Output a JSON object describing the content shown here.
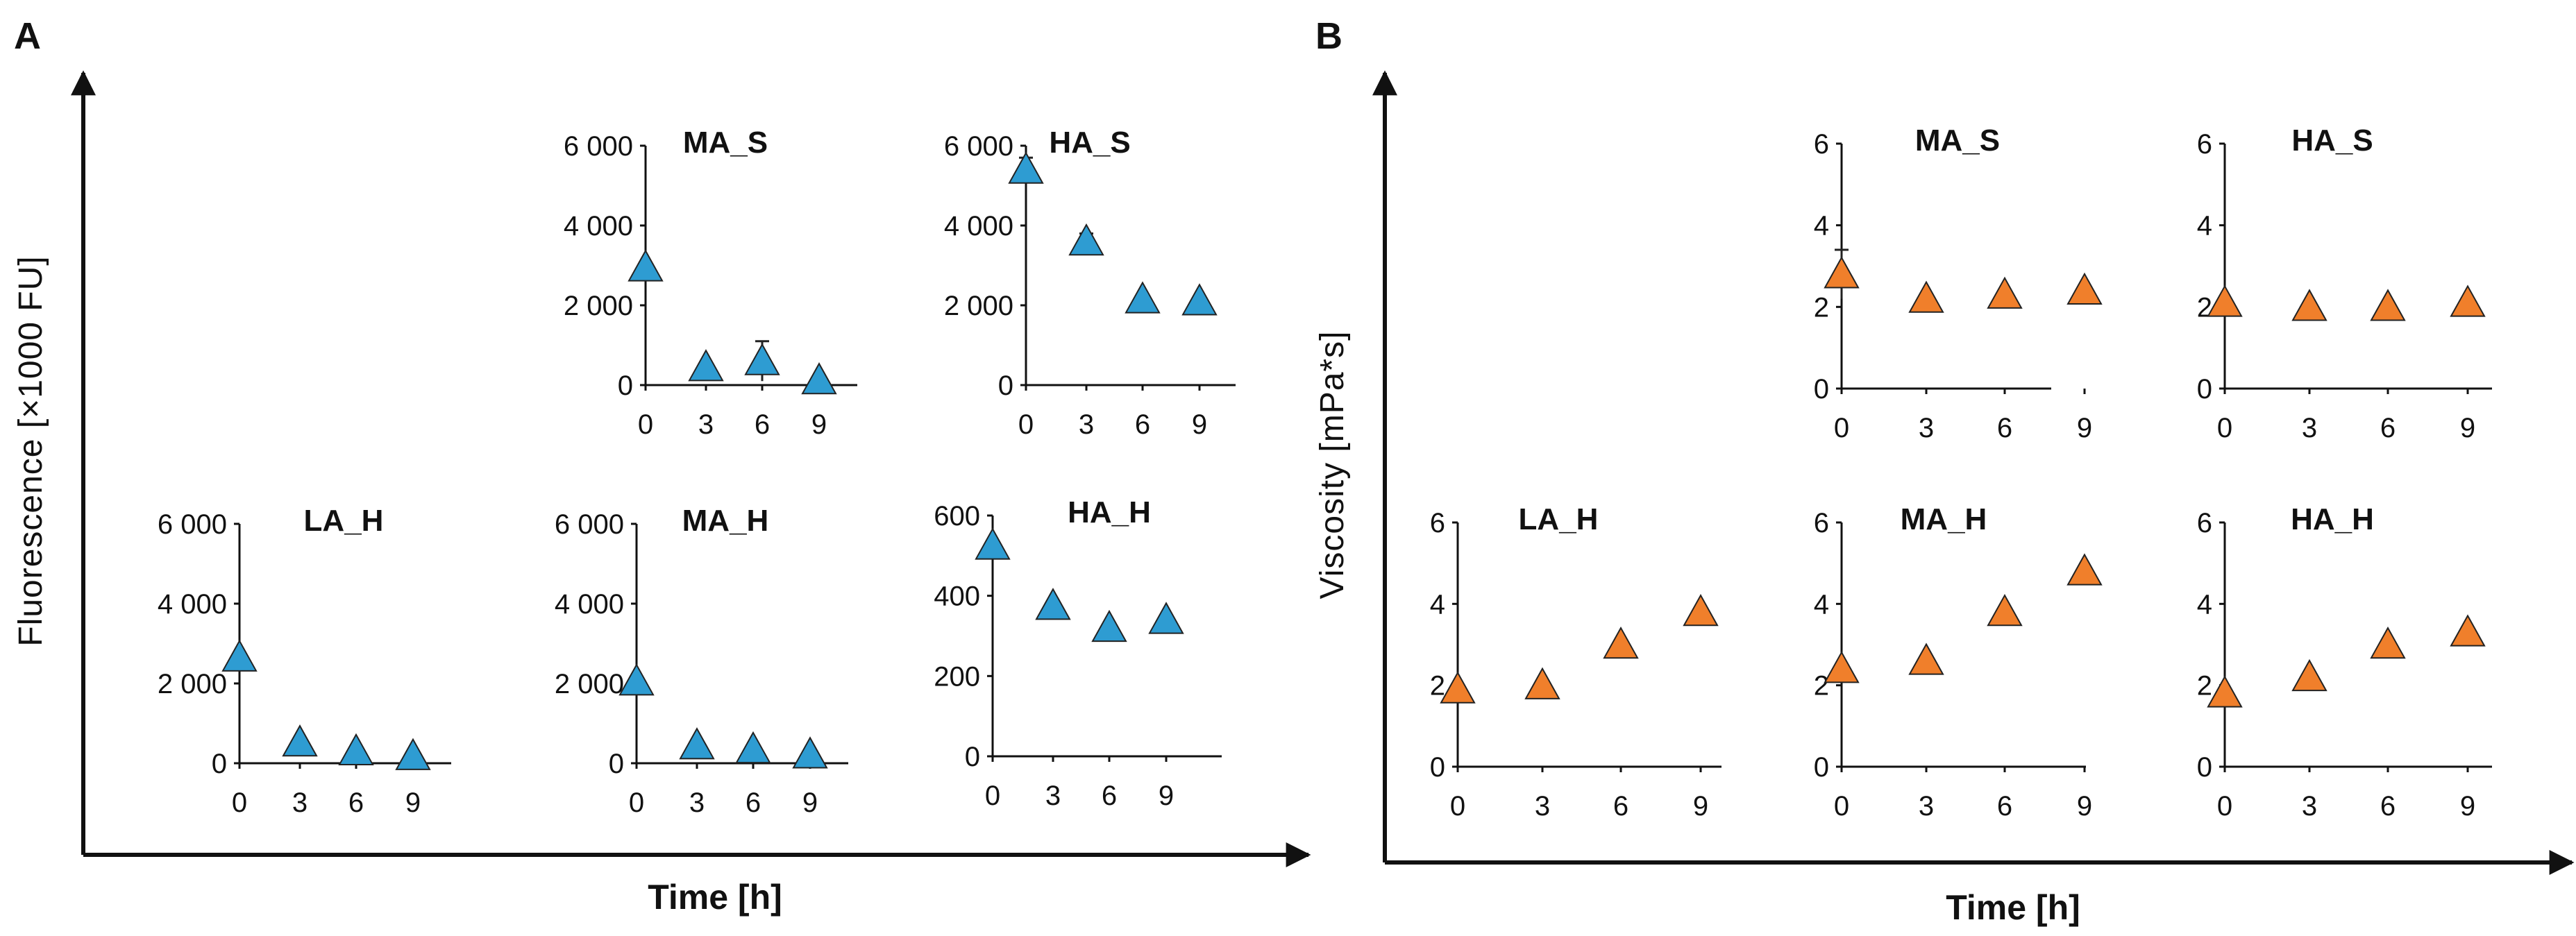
{
  "panels": [
    {
      "letter": "A",
      "ylabel": "Fluorescence [×1000 FU]",
      "xlabel": "Time [h]",
      "marker_color": "#2E9CD2"
    },
    {
      "letter": "B",
      "ylabel": "Viscosity [mPa*s]",
      "xlabel": "Time [h]",
      "marker_color": "#F07F2B"
    }
  ],
  "chart_data": [
    {
      "panel": "A",
      "type": "scatter",
      "title": "MA_S",
      "x": [
        0,
        3,
        6,
        9
      ],
      "y": [
        2950,
        450,
        600,
        120
      ],
      "ylim": [
        0,
        6000
      ],
      "yticks": [
        "6 000",
        "4 000",
        "2 000",
        "0"
      ],
      "xticks": [
        "0",
        "3",
        "6",
        "9"
      ],
      "error_bars": [
        0,
        0,
        500,
        0
      ]
    },
    {
      "panel": "A",
      "type": "scatter",
      "title": "HA_S",
      "x": [
        0,
        3,
        6,
        9
      ],
      "y": [
        5400,
        3600,
        2150,
        2100
      ],
      "ylim": [
        0,
        6000
      ],
      "yticks": [
        "6 000",
        "4 000",
        "2 000",
        "0"
      ],
      "xticks": [
        "0",
        "3",
        "6",
        "9"
      ],
      "error_bars": [
        300,
        200,
        0,
        0
      ]
    },
    {
      "panel": "A",
      "type": "scatter",
      "title": "LA_H",
      "x": [
        0,
        3,
        6,
        9
      ],
      "y": [
        2650,
        520,
        300,
        180
      ],
      "ylim": [
        0,
        6000
      ],
      "yticks": [
        "6 000",
        "4 000",
        "2 000",
        "0"
      ],
      "xticks": [
        "0",
        "3",
        "6",
        "9"
      ],
      "error_bars": [
        0,
        0,
        0,
        0
      ]
    },
    {
      "panel": "A",
      "type": "scatter",
      "title": "MA_H",
      "x": [
        0,
        3,
        6,
        9
      ],
      "y": [
        2050,
        450,
        350,
        220
      ],
      "ylim": [
        0,
        6000
      ],
      "yticks": [
        "6 000",
        "4 000",
        "2 000",
        "0"
      ],
      "xticks": [
        "0",
        "3",
        "6",
        "9"
      ],
      "error_bars": [
        0,
        0,
        0,
        0
      ]
    },
    {
      "panel": "A",
      "type": "scatter",
      "title": "HA_H",
      "x": [
        0,
        3,
        6,
        9
      ],
      "y": [
        525,
        375,
        320,
        340
      ],
      "ylim": [
        0,
        600
      ],
      "yticks": [
        "600",
        "400",
        "200",
        "0"
      ],
      "xticks": [
        "0",
        "3",
        "6",
        "9"
      ],
      "error_bars": [
        0,
        0,
        0,
        0
      ]
    },
    {
      "panel": "B",
      "type": "scatter",
      "title": "MA_S",
      "x": [
        0,
        3,
        6,
        9
      ],
      "y": [
        2.8,
        2.2,
        2.3,
        2.4
      ],
      "ylim": [
        0,
        6
      ],
      "yticks": [
        "6",
        "4",
        "2",
        "0"
      ],
      "xticks": [
        "0",
        "3",
        "6",
        "9"
      ],
      "error_bars": [
        0.6,
        0,
        0,
        0
      ]
    },
    {
      "panel": "B",
      "type": "scatter",
      "title": "HA_S",
      "x": [
        0,
        3,
        6,
        9
      ],
      "y": [
        2.1,
        2.0,
        2.0,
        2.1
      ],
      "ylim": [
        0,
        6
      ],
      "yticks": [
        "6",
        "4",
        "2",
        "0"
      ],
      "xticks": [
        "0",
        "3",
        "6",
        "9"
      ],
      "error_bars": [
        0,
        0,
        0,
        0
      ]
    },
    {
      "panel": "B",
      "type": "scatter",
      "title": "LA_H",
      "x": [
        0,
        3,
        6,
        9
      ],
      "y": [
        1.9,
        2.0,
        3.0,
        3.8
      ],
      "ylim": [
        0,
        6
      ],
      "yticks": [
        "6",
        "4",
        "2",
        "0"
      ],
      "xticks": [
        "0",
        "3",
        "6",
        "9"
      ],
      "error_bars": [
        0,
        0,
        0,
        0
      ]
    },
    {
      "panel": "B",
      "type": "scatter",
      "title": "MA_H",
      "x": [
        0,
        3,
        6,
        9
      ],
      "y": [
        2.4,
        2.6,
        3.8,
        4.8
      ],
      "ylim": [
        0,
        6
      ],
      "yticks": [
        "6",
        "4",
        "2",
        "0"
      ],
      "xticks": [
        "0",
        "3",
        "6",
        "9"
      ],
      "error_bars": [
        0,
        0,
        0,
        0
      ]
    },
    {
      "panel": "B",
      "type": "scatter",
      "title": "HA_H",
      "x": [
        0,
        3,
        6,
        9
      ],
      "y": [
        1.8,
        2.2,
        3.0,
        3.3
      ],
      "ylim": [
        0,
        6
      ],
      "yticks": [
        "6",
        "4",
        "2",
        "0"
      ],
      "xticks": [
        "0",
        "3",
        "6",
        "9"
      ],
      "error_bars": [
        0,
        0,
        0,
        0
      ]
    }
  ]
}
